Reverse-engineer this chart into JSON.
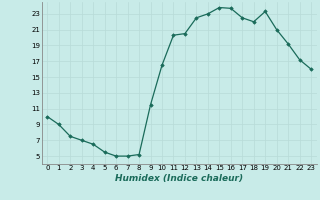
{
  "x": [
    0,
    1,
    2,
    3,
    4,
    5,
    6,
    7,
    8,
    9,
    10,
    11,
    12,
    13,
    14,
    15,
    16,
    17,
    18,
    19,
    20,
    21,
    22,
    23
  ],
  "y": [
    10,
    9,
    7.5,
    7,
    6.5,
    5.5,
    5,
    5,
    5.2,
    11.5,
    16.5,
    20.3,
    20.5,
    22.5,
    23.0,
    23.8,
    23.7,
    22.5,
    22.0,
    23.3,
    21.0,
    19.2,
    17.2,
    16.0
  ],
  "line_color": "#1a6b5a",
  "marker": "D",
  "marker_size": 1.8,
  "bg_color": "#c8ebe8",
  "grid_color": "#b8dbd8",
  "xlabel": "Humidex (Indice chaleur)",
  "xlabel_fontsize": 6.5,
  "xlabel_style": "italic",
  "xlabel_weight": "bold",
  "ylabel_ticks": [
    5,
    7,
    9,
    11,
    13,
    15,
    17,
    19,
    21,
    23
  ],
  "xlim": [
    -0.5,
    23.5
  ],
  "ylim": [
    4.0,
    24.5
  ],
  "xticks": [
    0,
    1,
    2,
    3,
    4,
    5,
    6,
    7,
    8,
    9,
    10,
    11,
    12,
    13,
    14,
    15,
    16,
    17,
    18,
    19,
    20,
    21,
    22,
    23
  ],
  "tick_fontsize": 5.0,
  "line_width": 0.9
}
